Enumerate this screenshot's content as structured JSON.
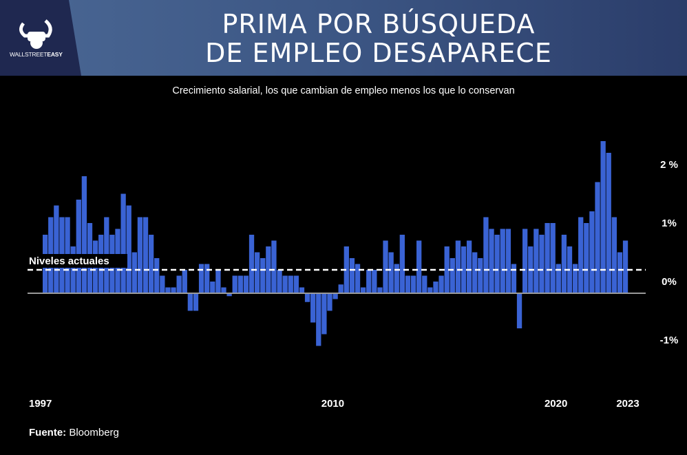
{
  "header": {
    "title_line1": "PRIMA POR BÚSQUEDA",
    "title_line2": "DE EMPLEO DESAPARECE",
    "logo_text_light": "WALLSTREET",
    "logo_text_bold": "EASY"
  },
  "source": {
    "label": "Fuente:",
    "value": "Bloomberg"
  },
  "colors": {
    "bar": "#3a63d4",
    "background": "#000000",
    "zero_line": "#9a9a9a",
    "dashed_line": "#ffffff"
  },
  "chart_data": {
    "type": "bar",
    "title": "Crecimiento salarial, los que cambian de empleo menos los que lo conservan",
    "frequency": "quarterly",
    "start": "1997-Q1",
    "end": "2023-Q1",
    "ylabel": "",
    "ylim": [
      -1.5,
      2.6
    ],
    "y_ticks": [
      {
        "value": 2,
        "label": "2 %"
      },
      {
        "value": 1,
        "label": "1%"
      },
      {
        "value": 0,
        "label": "0%"
      },
      {
        "value": -1,
        "label": "-1%"
      }
    ],
    "x_ticks": [
      {
        "value": 1997,
        "label": "1997"
      },
      {
        "value": 2010,
        "label": "2010"
      },
      {
        "value": 2020,
        "label": "2020"
      },
      {
        "value": 2023,
        "label": "2023"
      }
    ],
    "reference_line": {
      "value": 0.4,
      "label": "Niveles actuales"
    },
    "values": [
      1.0,
      1.3,
      1.5,
      1.3,
      1.3,
      0.8,
      1.6,
      2.0,
      1.2,
      0.9,
      1.0,
      1.3,
      1.0,
      1.1,
      1.7,
      1.5,
      0.7,
      1.3,
      1.3,
      1.0,
      0.6,
      0.3,
      0.1,
      0.1,
      0.3,
      0.4,
      -0.3,
      -0.3,
      0.5,
      0.5,
      0.2,
      0.4,
      0.1,
      -0.05,
      0.3,
      0.3,
      0.3,
      1.0,
      0.7,
      0.6,
      0.8,
      0.9,
      0.4,
      0.3,
      0.3,
      0.3,
      0.1,
      -0.15,
      -0.5,
      -0.9,
      -0.7,
      -0.3,
      -0.1,
      0.15,
      0.8,
      0.6,
      0.5,
      0.1,
      0.4,
      0.4,
      0.1,
      0.9,
      0.7,
      0.5,
      1.0,
      0.3,
      0.3,
      0.9,
      0.3,
      0.1,
      0.2,
      0.3,
      0.8,
      0.6,
      0.9,
      0.8,
      0.9,
      0.7,
      0.6,
      1.3,
      1.1,
      1.0,
      1.1,
      1.1,
      0.5,
      -0.6,
      1.1,
      0.8,
      1.1,
      1.0,
      1.2,
      1.2,
      0.5,
      1.0,
      0.8,
      0.5,
      1.3,
      1.2,
      1.4,
      1.9,
      2.6,
      2.4,
      1.3,
      0.7,
      0.9
    ]
  }
}
